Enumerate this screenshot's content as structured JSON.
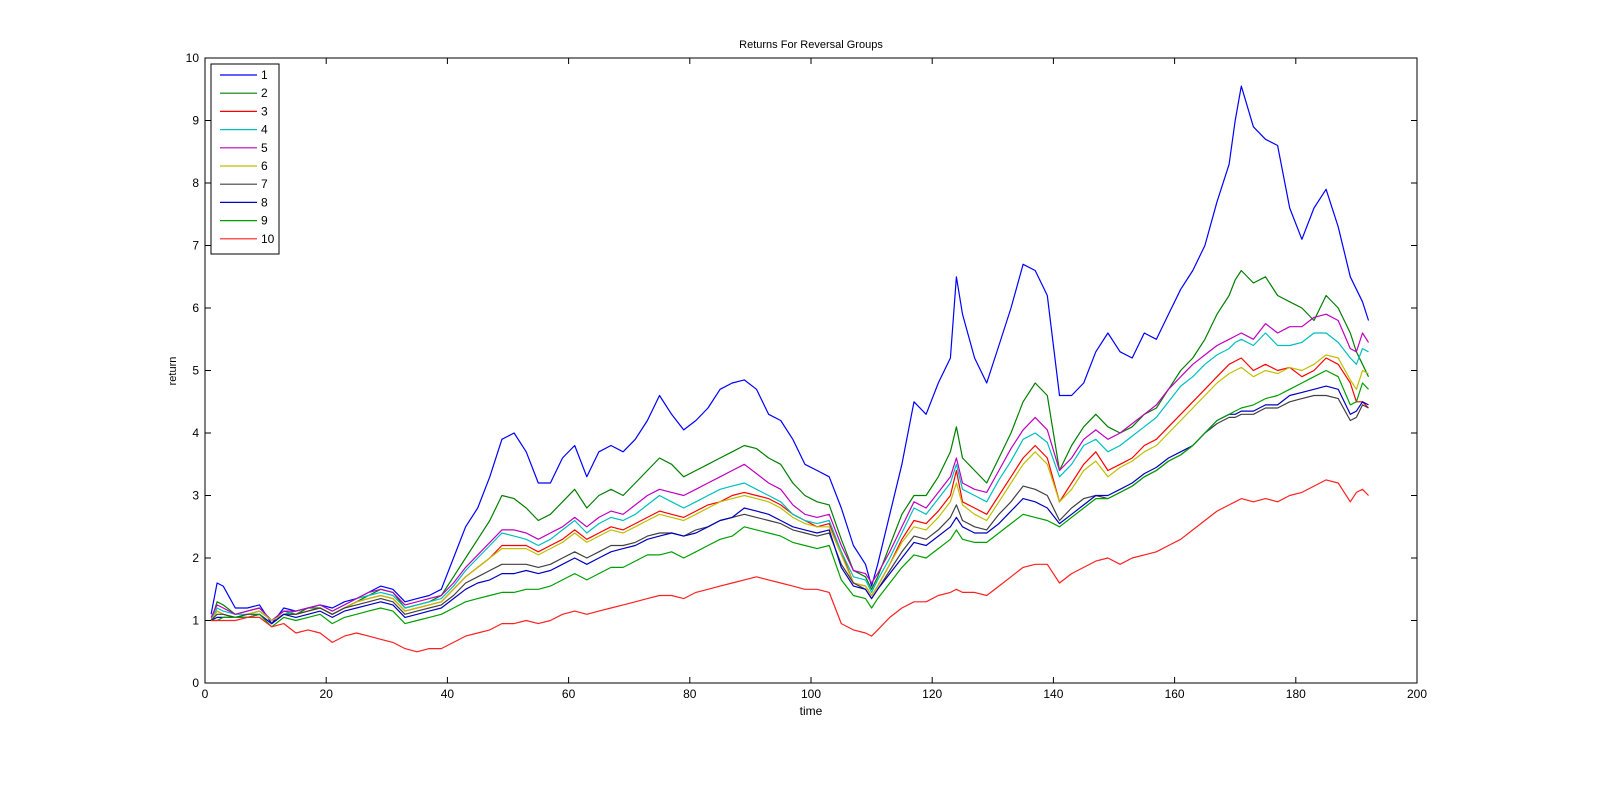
{
  "chart_data": {
    "type": "line",
    "title": "Returns For Reversal Groups",
    "xlabel": "time",
    "ylabel": "return",
    "xlim": [
      0,
      200
    ],
    "ylim": [
      0,
      10
    ],
    "xticks": [
      0,
      20,
      40,
      60,
      80,
      100,
      120,
      140,
      160,
      180,
      200
    ],
    "yticks": [
      0,
      1,
      2,
      3,
      4,
      5,
      6,
      7,
      8,
      9,
      10
    ],
    "grid": false,
    "legend_position": "top-left",
    "x": [
      1,
      2,
      3,
      5,
      7,
      9,
      11,
      13,
      15,
      17,
      19,
      21,
      23,
      25,
      27,
      29,
      31,
      33,
      35,
      37,
      39,
      41,
      43,
      45,
      47,
      49,
      51,
      53,
      55,
      57,
      59,
      61,
      63,
      65,
      67,
      69,
      71,
      73,
      75,
      77,
      79,
      81,
      83,
      85,
      87,
      89,
      91,
      93,
      95,
      97,
      99,
      101,
      103,
      105,
      107,
      109,
      110,
      111,
      113,
      115,
      117,
      119,
      121,
      123,
      124,
      125,
      127,
      129,
      131,
      133,
      135,
      137,
      139,
      141,
      143,
      145,
      147,
      149,
      151,
      153,
      155,
      157,
      159,
      161,
      163,
      165,
      167,
      169,
      170,
      171,
      173,
      175,
      177,
      179,
      181,
      183,
      185,
      187,
      189,
      190,
      191,
      192
    ],
    "series": [
      {
        "name": "1",
        "color": "#0000ff",
        "values": [
          1.1,
          1.6,
          1.55,
          1.2,
          1.2,
          1.25,
          0.95,
          1.2,
          1.15,
          1.2,
          1.25,
          1.2,
          1.3,
          1.35,
          1.45,
          1.55,
          1.5,
          1.3,
          1.35,
          1.4,
          1.5,
          2.0,
          2.5,
          2.8,
          3.3,
          3.9,
          4.0,
          3.7,
          3.2,
          3.2,
          3.6,
          3.8,
          3.3,
          3.7,
          3.8,
          3.7,
          3.9,
          4.2,
          4.6,
          4.3,
          4.05,
          4.2,
          4.4,
          4.7,
          4.8,
          4.85,
          4.7,
          4.3,
          4.2,
          3.9,
          3.5,
          3.4,
          3.3,
          2.8,
          2.2,
          1.9,
          1.55,
          1.9,
          2.7,
          3.5,
          4.5,
          4.3,
          4.8,
          5.2,
          6.5,
          5.9,
          5.2,
          4.8,
          5.4,
          6.0,
          6.7,
          6.6,
          6.2,
          4.6,
          4.6,
          4.8,
          5.3,
          5.6,
          5.3,
          5.2,
          5.6,
          5.5,
          5.9,
          6.3,
          6.6,
          7.0,
          7.7,
          8.3,
          9.0,
          9.55,
          8.9,
          8.7,
          8.6,
          7.6,
          7.1,
          7.6,
          7.9,
          7.3,
          6.5,
          6.3,
          6.1,
          5.8
        ]
      },
      {
        "name": "2",
        "color": "#008000",
        "values": [
          1.0,
          1.3,
          1.25,
          1.1,
          1.15,
          1.2,
          1.0,
          1.15,
          1.1,
          1.2,
          1.2,
          1.1,
          1.2,
          1.3,
          1.4,
          1.5,
          1.45,
          1.2,
          1.25,
          1.3,
          1.4,
          1.7,
          2.0,
          2.3,
          2.6,
          3.0,
          2.95,
          2.8,
          2.6,
          2.7,
          2.9,
          3.1,
          2.8,
          3.0,
          3.1,
          3.0,
          3.2,
          3.4,
          3.6,
          3.5,
          3.3,
          3.4,
          3.5,
          3.6,
          3.7,
          3.8,
          3.75,
          3.6,
          3.5,
          3.2,
          3.0,
          2.9,
          2.85,
          2.3,
          1.8,
          1.7,
          1.5,
          1.7,
          2.2,
          2.7,
          3.0,
          3.0,
          3.3,
          3.7,
          4.1,
          3.6,
          3.4,
          3.2,
          3.6,
          4.0,
          4.5,
          4.8,
          4.6,
          3.4,
          3.8,
          4.1,
          4.3,
          4.1,
          4.0,
          4.1,
          4.3,
          4.4,
          4.7,
          5.0,
          5.2,
          5.5,
          5.9,
          6.2,
          6.45,
          6.6,
          6.4,
          6.5,
          6.2,
          6.1,
          6.0,
          5.8,
          6.2,
          6.0,
          5.6,
          5.3,
          5.1,
          4.9
        ]
      },
      {
        "name": "3",
        "color": "#ff0000",
        "values": [
          1.0,
          1.15,
          1.1,
          1.05,
          1.1,
          1.15,
          1.0,
          1.1,
          1.1,
          1.15,
          1.2,
          1.1,
          1.2,
          1.3,
          1.35,
          1.4,
          1.35,
          1.15,
          1.2,
          1.25,
          1.3,
          1.5,
          1.7,
          1.85,
          2.0,
          2.2,
          2.2,
          2.2,
          2.1,
          2.2,
          2.3,
          2.45,
          2.3,
          2.4,
          2.5,
          2.45,
          2.55,
          2.65,
          2.75,
          2.7,
          2.65,
          2.75,
          2.85,
          2.9,
          3.0,
          3.05,
          3.0,
          2.95,
          2.85,
          2.7,
          2.6,
          2.5,
          2.55,
          2.1,
          1.6,
          1.55,
          1.4,
          1.55,
          1.9,
          2.3,
          2.6,
          2.55,
          2.75,
          3.0,
          3.4,
          2.9,
          2.8,
          2.7,
          3.0,
          3.3,
          3.6,
          3.8,
          3.6,
          2.9,
          3.2,
          3.5,
          3.7,
          3.4,
          3.5,
          3.6,
          3.8,
          3.9,
          4.1,
          4.3,
          4.5,
          4.7,
          4.9,
          5.1,
          5.15,
          5.2,
          5.0,
          5.1,
          5.0,
          5.05,
          4.9,
          5.0,
          5.2,
          5.1,
          4.8,
          4.5,
          4.5,
          4.4
        ]
      },
      {
        "name": "4",
        "color": "#00bfbf",
        "values": [
          1.0,
          1.2,
          1.15,
          1.1,
          1.1,
          1.15,
          1.0,
          1.1,
          1.15,
          1.2,
          1.25,
          1.15,
          1.25,
          1.35,
          1.4,
          1.45,
          1.4,
          1.2,
          1.25,
          1.3,
          1.35,
          1.55,
          1.8,
          2.0,
          2.2,
          2.4,
          2.35,
          2.3,
          2.2,
          2.3,
          2.45,
          2.6,
          2.4,
          2.55,
          2.65,
          2.6,
          2.7,
          2.85,
          3.0,
          2.9,
          2.8,
          2.9,
          3.0,
          3.1,
          3.15,
          3.2,
          3.1,
          3.0,
          2.9,
          2.7,
          2.6,
          2.55,
          2.6,
          2.1,
          1.7,
          1.65,
          1.45,
          1.65,
          2.0,
          2.4,
          2.8,
          2.7,
          2.95,
          3.2,
          3.5,
          3.1,
          3.0,
          2.9,
          3.25,
          3.55,
          3.9,
          4.0,
          3.85,
          3.3,
          3.5,
          3.8,
          3.9,
          3.7,
          3.8,
          3.95,
          4.1,
          4.25,
          4.5,
          4.75,
          4.9,
          5.1,
          5.25,
          5.35,
          5.45,
          5.5,
          5.4,
          5.6,
          5.4,
          5.4,
          5.45,
          5.6,
          5.6,
          5.45,
          5.2,
          5.1,
          5.35,
          5.3
        ]
      },
      {
        "name": "5",
        "color": "#bf00bf",
        "values": [
          1.05,
          1.25,
          1.2,
          1.1,
          1.15,
          1.2,
          1.0,
          1.15,
          1.15,
          1.2,
          1.25,
          1.15,
          1.25,
          1.35,
          1.45,
          1.5,
          1.45,
          1.25,
          1.3,
          1.35,
          1.4,
          1.6,
          1.85,
          2.05,
          2.25,
          2.45,
          2.45,
          2.4,
          2.3,
          2.4,
          2.5,
          2.65,
          2.5,
          2.65,
          2.75,
          2.7,
          2.85,
          3.0,
          3.1,
          3.05,
          3.0,
          3.1,
          3.2,
          3.3,
          3.4,
          3.5,
          3.35,
          3.2,
          3.1,
          2.85,
          2.7,
          2.65,
          2.7,
          2.2,
          1.8,
          1.75,
          1.6,
          1.75,
          2.1,
          2.5,
          2.9,
          2.8,
          3.05,
          3.3,
          3.6,
          3.2,
          3.1,
          3.05,
          3.4,
          3.75,
          4.05,
          4.25,
          4.05,
          3.4,
          3.6,
          3.9,
          4.05,
          3.9,
          4.0,
          4.15,
          4.3,
          4.45,
          4.7,
          4.9,
          5.1,
          5.25,
          5.4,
          5.5,
          5.55,
          5.6,
          5.5,
          5.75,
          5.6,
          5.7,
          5.7,
          5.85,
          5.9,
          5.8,
          5.35,
          5.3,
          5.6,
          5.45
        ]
      },
      {
        "name": "6",
        "color": "#bfbf00",
        "values": [
          1.0,
          1.15,
          1.1,
          1.05,
          1.1,
          1.15,
          1.0,
          1.1,
          1.1,
          1.15,
          1.2,
          1.1,
          1.2,
          1.3,
          1.35,
          1.4,
          1.35,
          1.15,
          1.2,
          1.25,
          1.3,
          1.5,
          1.7,
          1.85,
          2.0,
          2.15,
          2.15,
          2.15,
          2.05,
          2.15,
          2.25,
          2.4,
          2.25,
          2.35,
          2.45,
          2.4,
          2.5,
          2.6,
          2.7,
          2.65,
          2.6,
          2.7,
          2.8,
          2.9,
          2.95,
          3.0,
          2.95,
          2.9,
          2.8,
          2.65,
          2.55,
          2.5,
          2.5,
          2.05,
          1.6,
          1.55,
          1.4,
          1.55,
          1.9,
          2.25,
          2.5,
          2.45,
          2.65,
          2.9,
          3.2,
          2.85,
          2.7,
          2.6,
          2.9,
          3.2,
          3.5,
          3.7,
          3.5,
          2.9,
          3.1,
          3.4,
          3.55,
          3.3,
          3.45,
          3.55,
          3.7,
          3.8,
          4.0,
          4.2,
          4.4,
          4.6,
          4.8,
          4.95,
          5.0,
          5.05,
          4.9,
          5.0,
          4.95,
          5.05,
          5.0,
          5.1,
          5.25,
          5.2,
          4.85,
          4.7,
          5.0,
          4.95
        ]
      },
      {
        "name": "7",
        "color": "#404040",
        "values": [
          1.0,
          1.1,
          1.1,
          1.05,
          1.1,
          1.1,
          0.95,
          1.1,
          1.1,
          1.15,
          1.2,
          1.1,
          1.2,
          1.25,
          1.3,
          1.35,
          1.3,
          1.1,
          1.15,
          1.2,
          1.25,
          1.4,
          1.6,
          1.7,
          1.8,
          1.9,
          1.9,
          1.9,
          1.85,
          1.9,
          2.0,
          2.1,
          2.0,
          2.1,
          2.2,
          2.2,
          2.25,
          2.35,
          2.4,
          2.4,
          2.35,
          2.45,
          2.5,
          2.6,
          2.65,
          2.7,
          2.65,
          2.6,
          2.55,
          2.45,
          2.4,
          2.35,
          2.4,
          1.9,
          1.6,
          1.5,
          1.35,
          1.5,
          1.8,
          2.1,
          2.35,
          2.3,
          2.45,
          2.65,
          2.85,
          2.6,
          2.5,
          2.45,
          2.7,
          2.9,
          3.15,
          3.1,
          3.0,
          2.6,
          2.8,
          2.95,
          3.0,
          2.95,
          3.05,
          3.15,
          3.3,
          3.4,
          3.55,
          3.65,
          3.8,
          4.0,
          4.15,
          4.25,
          4.25,
          4.3,
          4.3,
          4.4,
          4.4,
          4.5,
          4.55,
          4.6,
          4.6,
          4.55,
          4.2,
          4.25,
          4.45,
          4.4
        ]
      },
      {
        "name": "8",
        "color": "#0000bf",
        "values": [
          1.0,
          1.05,
          1.05,
          1.05,
          1.05,
          1.1,
          0.95,
          1.1,
          1.05,
          1.1,
          1.15,
          1.05,
          1.15,
          1.2,
          1.25,
          1.3,
          1.25,
          1.05,
          1.1,
          1.15,
          1.2,
          1.35,
          1.5,
          1.6,
          1.65,
          1.75,
          1.75,
          1.8,
          1.75,
          1.8,
          1.9,
          2.0,
          1.9,
          2.0,
          2.1,
          2.15,
          2.2,
          2.3,
          2.35,
          2.4,
          2.35,
          2.4,
          2.5,
          2.6,
          2.65,
          2.8,
          2.75,
          2.7,
          2.6,
          2.5,
          2.45,
          2.4,
          2.45,
          1.85,
          1.55,
          1.5,
          1.35,
          1.5,
          1.75,
          2.0,
          2.25,
          2.2,
          2.35,
          2.5,
          2.65,
          2.5,
          2.4,
          2.4,
          2.55,
          2.75,
          2.95,
          2.9,
          2.8,
          2.55,
          2.7,
          2.85,
          3.0,
          3.0,
          3.1,
          3.2,
          3.35,
          3.45,
          3.6,
          3.7,
          3.8,
          4.0,
          4.2,
          4.3,
          4.3,
          4.35,
          4.35,
          4.45,
          4.45,
          4.6,
          4.65,
          4.7,
          4.75,
          4.7,
          4.3,
          4.35,
          4.5,
          4.45
        ]
      },
      {
        "name": "9",
        "color": "#00a000",
        "values": [
          1.0,
          1.0,
          1.05,
          1.05,
          1.05,
          1.1,
          0.9,
          1.05,
          1.0,
          1.05,
          1.1,
          0.95,
          1.05,
          1.1,
          1.15,
          1.2,
          1.15,
          0.95,
          1.0,
          1.05,
          1.1,
          1.2,
          1.3,
          1.35,
          1.4,
          1.45,
          1.45,
          1.5,
          1.5,
          1.55,
          1.65,
          1.75,
          1.65,
          1.75,
          1.85,
          1.85,
          1.95,
          2.05,
          2.05,
          2.1,
          2.0,
          2.1,
          2.2,
          2.3,
          2.35,
          2.5,
          2.45,
          2.4,
          2.35,
          2.25,
          2.2,
          2.15,
          2.2,
          1.65,
          1.4,
          1.35,
          1.2,
          1.35,
          1.6,
          1.85,
          2.05,
          2.0,
          2.15,
          2.3,
          2.45,
          2.3,
          2.25,
          2.25,
          2.4,
          2.55,
          2.7,
          2.65,
          2.6,
          2.5,
          2.65,
          2.8,
          2.95,
          2.95,
          3.05,
          3.15,
          3.3,
          3.4,
          3.55,
          3.65,
          3.8,
          4.0,
          4.2,
          4.3,
          4.35,
          4.4,
          4.45,
          4.55,
          4.6,
          4.7,
          4.8,
          4.9,
          5.0,
          4.9,
          4.45,
          4.5,
          4.8,
          4.7
        ]
      },
      {
        "name": "10",
        "color": "#ff2020",
        "values": [
          1.0,
          1.0,
          1.0,
          1.0,
          1.05,
          1.05,
          0.9,
          0.95,
          0.8,
          0.85,
          0.8,
          0.65,
          0.75,
          0.8,
          0.75,
          0.7,
          0.65,
          0.55,
          0.5,
          0.55,
          0.55,
          0.65,
          0.75,
          0.8,
          0.85,
          0.95,
          0.95,
          1.0,
          0.95,
          1.0,
          1.1,
          1.15,
          1.1,
          1.15,
          1.2,
          1.25,
          1.3,
          1.35,
          1.4,
          1.4,
          1.35,
          1.45,
          1.5,
          1.55,
          1.6,
          1.65,
          1.7,
          1.65,
          1.6,
          1.55,
          1.5,
          1.5,
          1.45,
          0.95,
          0.85,
          0.8,
          0.75,
          0.85,
          1.05,
          1.2,
          1.3,
          1.3,
          1.4,
          1.45,
          1.5,
          1.45,
          1.45,
          1.4,
          1.55,
          1.7,
          1.85,
          1.9,
          1.9,
          1.6,
          1.75,
          1.85,
          1.95,
          2.0,
          1.9,
          2.0,
          2.05,
          2.1,
          2.2,
          2.3,
          2.45,
          2.6,
          2.75,
          2.85,
          2.9,
          2.95,
          2.9,
          2.95,
          2.9,
          3.0,
          3.05,
          3.15,
          3.25,
          3.2,
          2.9,
          3.05,
          3.1,
          3.0
        ]
      }
    ]
  }
}
